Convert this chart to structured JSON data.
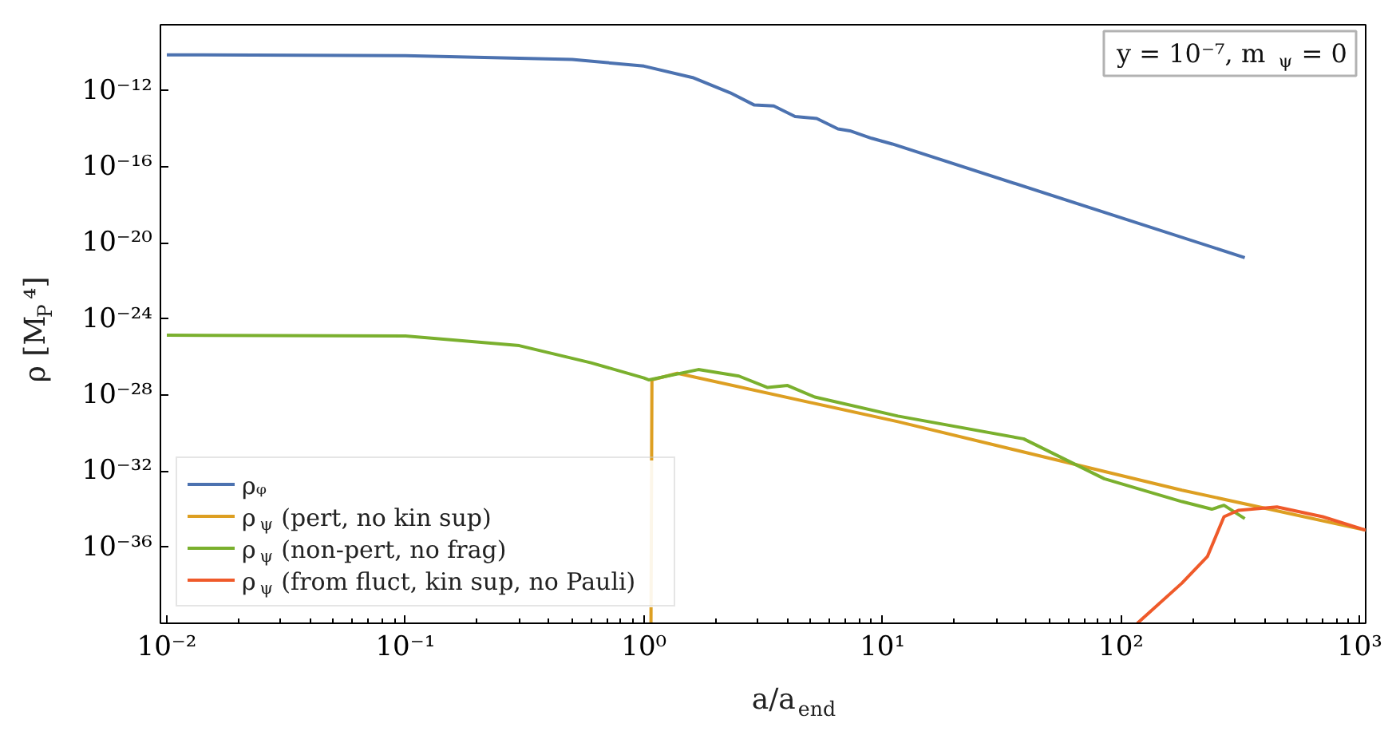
{
  "chart_data": {
    "type": "line",
    "xlabel": "a/a$_{end}$",
    "ylabel": "ρ [M$_{P}$⁴]",
    "annotations": [
      "y = 10⁻⁷, m$_{ψ}$ = 0"
    ],
    "log": "xy",
    "xlim": [
      0.0094,
      1060
    ],
    "ylim": [
      1e-40,
      3e-09
    ],
    "xticks": [
      {
        "value": 0.01,
        "label": "10⁻²"
      },
      {
        "value": 0.1,
        "label": "10⁻¹"
      },
      {
        "value": 1,
        "label": "10⁰"
      },
      {
        "value": 10,
        "label": "10¹"
      },
      {
        "value": 100,
        "label": "10²"
      },
      {
        "value": 1000,
        "label": "10³"
      }
    ],
    "yticks": [
      {
        "value": 1e-36,
        "label": "10⁻³⁶"
      },
      {
        "value": 1e-32,
        "label": "10⁻³²"
      },
      {
        "value": 1e-28,
        "label": "10⁻²⁸"
      },
      {
        "value": 1e-24,
        "label": "10⁻²⁴"
      },
      {
        "value": 1e-20,
        "label": "10⁻²⁰"
      },
      {
        "value": 1e-16,
        "label": "10⁻¹⁶"
      },
      {
        "value": 1e-12,
        "label": "10⁻¹²"
      }
    ],
    "grid": false,
    "legend": "bottom left",
    "line_style": "solid",
    "marker": "none",
    "series": [
      {
        "name": "ρᵩ",
        "color": "#4c72b0",
        "x": [
          0.01,
          0.1,
          0.5,
          1.0,
          1.6,
          2.3,
          2.9,
          3.5,
          4.3,
          5.3,
          6.5,
          7.3,
          9,
          11,
          330
        ],
        "values": [
          7.9e-11,
          7.1e-11,
          4.5e-11,
          2e-11,
          5e-12,
          7.9e-13,
          1.8e-13,
          1.6e-13,
          4.5e-14,
          3.5e-14,
          1e-14,
          7.9e-15,
          3.2e-15,
          1.6e-15,
          1.7e-21
        ]
      },
      {
        "name": "ρ$_{ψ}$ (pert, no kin sup)",
        "color": "#dd9f22",
        "x": [
          1.07,
          1.08,
          1.38,
          11.6,
          180,
          1060
        ],
        "values": [
          1e-40,
          6.3e-28,
          1.4e-27,
          4e-30,
          1e-33,
          7.9e-36
        ]
      },
      {
        "name": "ρ$_{ψ}$ (non-pert, no frag)",
        "color": "#7ab02e",
        "x": [
          0.01,
          0.1,
          0.3,
          0.6,
          1.0,
          1.05,
          1.69,
          2.5,
          3.3,
          4.0,
          5.2,
          11.6,
          39,
          85,
          180,
          240,
          270,
          330
        ],
        "values": [
          1.4e-25,
          1.3e-25,
          4e-26,
          5e-27,
          7.9e-28,
          6.3e-28,
          2.2e-27,
          1e-27,
          2.5e-28,
          3.2e-28,
          7.9e-29,
          7.9e-30,
          5e-31,
          4e-33,
          2.5e-34,
          1e-34,
          1.6e-34,
          3.2e-35
        ]
      },
      {
        "name": "ρ$_{ψ}$ (from fluct, kin sup, no Pauli)",
        "color": "#ef5a2a",
        "x": [
          117,
          180,
          230,
          270,
          310,
          450,
          700,
          1060
        ],
        "values": [
          1e-40,
          1.3e-38,
          3.2e-37,
          4e-35,
          8.7e-35,
          1.3e-34,
          4e-35,
          7.9e-36
        ]
      }
    ]
  }
}
